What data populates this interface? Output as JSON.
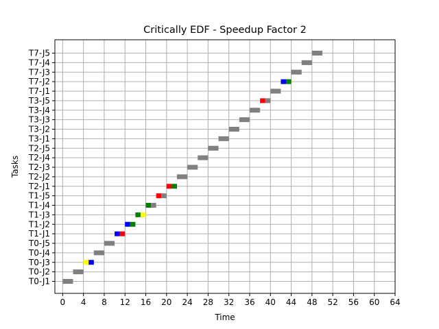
{
  "chart_data": {
    "type": "gantt",
    "title": "Critically EDF - Speedup Factor 2",
    "xlabel": "Time",
    "ylabel": "Tasks",
    "xlim": [
      -1.5,
      64
    ],
    "x_ticks": [
      0,
      4,
      8,
      12,
      16,
      20,
      24,
      28,
      32,
      36,
      40,
      44,
      48,
      52,
      56,
      60,
      64
    ],
    "grid": true,
    "colors": {
      "gray": "#808080",
      "red": "#ff0000",
      "green": "#008000",
      "blue": "#0000ff",
      "yellow": "#ffff00"
    },
    "jobs": [
      {
        "name": "T0-J1",
        "segments": [
          {
            "start": 0,
            "end": 2,
            "color": "gray"
          }
        ]
      },
      {
        "name": "T0-J2",
        "segments": [
          {
            "start": 2,
            "end": 4,
            "color": "gray"
          }
        ]
      },
      {
        "name": "T0-J3",
        "segments": [
          {
            "start": 4,
            "end": 5,
            "color": "yellow"
          },
          {
            "start": 5,
            "end": 6,
            "color": "blue"
          }
        ]
      },
      {
        "name": "T0-J4",
        "segments": [
          {
            "start": 6,
            "end": 8,
            "color": "gray"
          }
        ]
      },
      {
        "name": "T0-J5",
        "segments": [
          {
            "start": 8,
            "end": 10,
            "color": "gray"
          }
        ]
      },
      {
        "name": "T1-J1",
        "segments": [
          {
            "start": 10,
            "end": 11,
            "color": "blue"
          },
          {
            "start": 11,
            "end": 12,
            "color": "red"
          }
        ]
      },
      {
        "name": "T1-J2",
        "segments": [
          {
            "start": 12,
            "end": 13,
            "color": "blue"
          },
          {
            "start": 13,
            "end": 14,
            "color": "green"
          }
        ]
      },
      {
        "name": "T1-J3",
        "segments": [
          {
            "start": 14,
            "end": 15,
            "color": "green"
          },
          {
            "start": 15,
            "end": 16,
            "color": "yellow"
          }
        ]
      },
      {
        "name": "T1-J4",
        "segments": [
          {
            "start": 16,
            "end": 17,
            "color": "green"
          },
          {
            "start": 17,
            "end": 18,
            "color": "gray"
          }
        ]
      },
      {
        "name": "T1-J5",
        "segments": [
          {
            "start": 18,
            "end": 19,
            "color": "red"
          },
          {
            "start": 19,
            "end": 20,
            "color": "gray"
          }
        ]
      },
      {
        "name": "T2-J1",
        "segments": [
          {
            "start": 20,
            "end": 21,
            "color": "red"
          },
          {
            "start": 21,
            "end": 22,
            "color": "green"
          }
        ]
      },
      {
        "name": "T2-J2",
        "segments": [
          {
            "start": 22,
            "end": 24,
            "color": "gray"
          }
        ]
      },
      {
        "name": "T2-J3",
        "segments": [
          {
            "start": 24,
            "end": 26,
            "color": "gray"
          }
        ]
      },
      {
        "name": "T2-J4",
        "segments": [
          {
            "start": 26,
            "end": 28,
            "color": "gray"
          }
        ]
      },
      {
        "name": "T2-J5",
        "segments": [
          {
            "start": 28,
            "end": 30,
            "color": "gray"
          }
        ]
      },
      {
        "name": "T3-J1",
        "segments": [
          {
            "start": 30,
            "end": 32,
            "color": "gray"
          }
        ]
      },
      {
        "name": "T3-J2",
        "segments": [
          {
            "start": 32,
            "end": 34,
            "color": "gray"
          }
        ]
      },
      {
        "name": "T3-J3",
        "segments": [
          {
            "start": 34,
            "end": 36,
            "color": "gray"
          }
        ]
      },
      {
        "name": "T3-J4",
        "segments": [
          {
            "start": 36,
            "end": 38,
            "color": "gray"
          }
        ]
      },
      {
        "name": "T3-J5",
        "segments": [
          {
            "start": 38,
            "end": 39,
            "color": "red"
          },
          {
            "start": 39,
            "end": 40,
            "color": "gray"
          }
        ]
      },
      {
        "name": "T7-J1",
        "segments": [
          {
            "start": 40,
            "end": 42,
            "color": "gray"
          }
        ]
      },
      {
        "name": "T7-J2",
        "segments": [
          {
            "start": 42,
            "end": 43,
            "color": "blue"
          },
          {
            "start": 43,
            "end": 44,
            "color": "green"
          }
        ]
      },
      {
        "name": "T7-J3",
        "segments": [
          {
            "start": 44,
            "end": 46,
            "color": "gray"
          }
        ]
      },
      {
        "name": "T7-J4",
        "segments": [
          {
            "start": 46,
            "end": 48,
            "color": "gray"
          }
        ]
      },
      {
        "name": "T7-J5",
        "segments": [
          {
            "start": 48,
            "end": 50,
            "color": "gray"
          }
        ]
      }
    ]
  }
}
